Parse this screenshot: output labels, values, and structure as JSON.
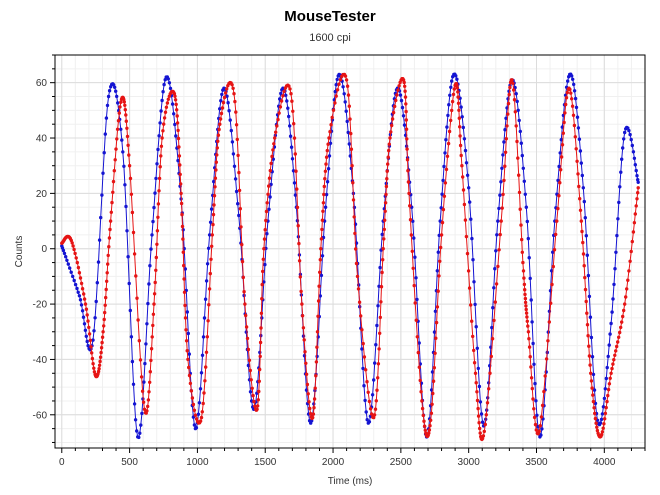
{
  "chart_data": {
    "type": "scatter",
    "title": "MouseTester",
    "subtitle": "1600 cpi",
    "xlabel": "Time (ms)",
    "ylabel": "Counts",
    "xlim": [
      -50,
      4300
    ],
    "ylim": [
      -72,
      70
    ],
    "xticks": [
      0,
      500,
      1000,
      1500,
      2000,
      2500,
      3000,
      3500,
      4000
    ],
    "yticks": [
      -60,
      -40,
      -20,
      0,
      20,
      40,
      60
    ],
    "grid": true,
    "legend": "none",
    "series": [
      {
        "color": "#1414d2",
        "x": [
          0,
          130,
          230,
          345,
          450,
          560,
          665,
          770,
          880,
          985,
          1090,
          1195,
          1305,
          1415,
          1520,
          1630,
          1730,
          1835,
          1945,
          2045,
          2150,
          2260,
          2370,
          2475,
          2580,
          2690,
          2790,
          2890,
          3000,
          3110,
          3215,
          3320,
          3425,
          3525,
          3635,
          3745,
          3845,
          3950,
          4050,
          4150,
          4250
        ],
        "y": [
          1,
          -17,
          -33,
          55,
          35,
          -68,
          5,
          62,
          18,
          -65,
          5,
          58,
          12,
          -58,
          10,
          58,
          15,
          -63,
          15,
          63,
          20,
          -63,
          10,
          58,
          15,
          -68,
          10,
          63,
          22,
          -64,
          10,
          61,
          15,
          -68,
          10,
          63,
          22,
          -62,
          -27,
          42,
          24
        ]
      },
      {
        "color": "#e61414",
        "x": [
          0,
          70,
          175,
          250,
          305,
          360,
          440,
          500,
          610,
          680,
          740,
          830,
          880,
          930,
          1030,
          1110,
          1165,
          1270,
          1350,
          1440,
          1490,
          1570,
          1690,
          1770,
          1850,
          1910,
          1970,
          2100,
          2180,
          2300,
          2370,
          2420,
          2520,
          2560,
          2655,
          2720,
          2800,
          2900,
          2950,
          3050,
          3115,
          3240,
          3320,
          3400,
          3440,
          3520,
          3650,
          3740,
          3830,
          3900,
          3970,
          4050,
          4150,
          4250
        ],
        "y": [
          2,
          3,
          -20,
          -46,
          -30,
          10,
          54,
          30,
          -58,
          -20,
          40,
          56,
          20,
          -40,
          -61,
          5,
          45,
          56,
          -20,
          -58,
          0,
          40,
          56,
          -20,
          -61,
          0,
          40,
          61,
          -10,
          -61,
          0,
          40,
          61,
          20,
          -55,
          -62,
          5,
          59,
          30,
          -45,
          -66,
          10,
          61,
          -5,
          -30,
          -66,
          10,
          58,
          10,
          -45,
          -68,
          -45,
          -20,
          22
        ]
      }
    ]
  }
}
